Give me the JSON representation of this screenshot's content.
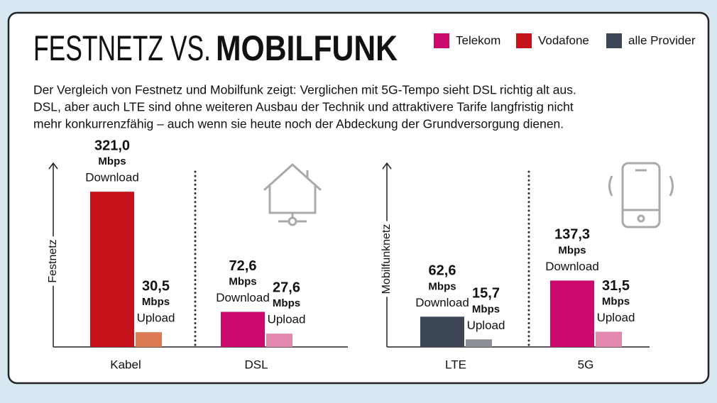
{
  "title_light": "FESTNETZ VS.",
  "title_bold": "MOBILFUNK",
  "legend": [
    {
      "name": "Telekom",
      "color": "#cc0a6e"
    },
    {
      "name": "Vodafone",
      "color": "#c4111a"
    },
    {
      "name": "alle Provider",
      "color": "#3d4654"
    }
  ],
  "description": [
    "Der Vergleich von Festnetz und Mobilfunk zeigt: Verglichen mit 5G-Tempo sieht DSL richtig alt aus.",
    "DSL, aber auch LTE sind ohne weiteren Ausbau der Technik und attraktivere Tarife langfristig nicht",
    "mehr konkurrenzfähig – auch wenn sie heute noch der Abdeckung der Grundversorgung dienen."
  ],
  "chart_data": [
    {
      "type": "bar",
      "y_label": "Festnetz",
      "unit": "Mbps",
      "categories": [
        "Kabel",
        "DSL"
      ],
      "ylim": [
        0,
        380
      ],
      "series": [
        {
          "name": "Download",
          "values": [
            321.0,
            72.6
          ],
          "value_labels": [
            "321,0",
            "72,6"
          ],
          "colors": [
            "#c4111a",
            "#cc0a6e"
          ]
        },
        {
          "name": "Upload",
          "values": [
            30.5,
            27.6
          ],
          "value_labels": [
            "30,5",
            "27,6"
          ],
          "colors": [
            "#dc7a55",
            "#e389b0"
          ]
        }
      ]
    },
    {
      "type": "bar",
      "y_label": "Mobilfunknetz",
      "unit": "Mbps",
      "categories": [
        "LTE",
        "5G"
      ],
      "ylim": [
        0,
        380
      ],
      "series": [
        {
          "name": "Download",
          "values": [
            62.6,
            137.3
          ],
          "value_labels": [
            "62,6",
            "137,3"
          ],
          "colors": [
            "#3d4654",
            "#cc0a6e"
          ]
        },
        {
          "name": "Upload",
          "values": [
            15.7,
            31.5
          ],
          "value_labels": [
            "15,7",
            "31,5"
          ],
          "colors": [
            "#8b9097",
            "#e389b0"
          ]
        }
      ]
    }
  ]
}
